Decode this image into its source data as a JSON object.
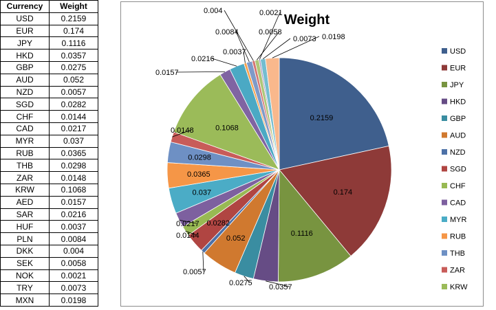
{
  "table": {
    "headers": [
      "Currency",
      "Weight"
    ],
    "rows": [
      [
        "USD",
        "0.2159"
      ],
      [
        "EUR",
        "0.174"
      ],
      [
        "JPY",
        "0.1116"
      ],
      [
        "HKD",
        "0.0357"
      ],
      [
        "GBP",
        "0.0275"
      ],
      [
        "AUD",
        "0.052"
      ],
      [
        "NZD",
        "0.0057"
      ],
      [
        "SGD",
        "0.0282"
      ],
      [
        "CHF",
        "0.0144"
      ],
      [
        "CAD",
        "0.0217"
      ],
      [
        "MYR",
        "0.037"
      ],
      [
        "RUB",
        "0.0365"
      ],
      [
        "THB",
        "0.0298"
      ],
      [
        "ZAR",
        "0.0148"
      ],
      [
        "KRW",
        "0.1068"
      ],
      [
        "AED",
        "0.0157"
      ],
      [
        "SAR",
        "0.0216"
      ],
      [
        "HUF",
        "0.0037"
      ],
      [
        "PLN",
        "0.0084"
      ],
      [
        "DKK",
        "0.004"
      ],
      [
        "SEK",
        "0.0058"
      ],
      [
        "NOK",
        "0.0021"
      ],
      [
        "TRY",
        "0.0073"
      ],
      [
        "MXN",
        "0.0198"
      ]
    ]
  },
  "chart_data": {
    "type": "pie",
    "title": "Weight",
    "legend_position": "right",
    "labels": [
      "USD",
      "EUR",
      "JPY",
      "HKD",
      "GBP",
      "AUD",
      "NZD",
      "SGD",
      "CHF",
      "CAD",
      "MYR",
      "RUB",
      "THB",
      "ZAR",
      "KRW",
      "AED",
      "SAR",
      "HUF",
      "PLN",
      "DKK",
      "SEK",
      "NOK",
      "TRY",
      "MXN"
    ],
    "values": [
      0.2159,
      0.174,
      0.1116,
      0.0357,
      0.0275,
      0.052,
      0.0057,
      0.0282,
      0.0144,
      0.0217,
      0.037,
      0.0365,
      0.0298,
      0.0148,
      0.1068,
      0.0157,
      0.0216,
      0.0037,
      0.0084,
      0.004,
      0.0058,
      0.0021,
      0.0073,
      0.0198
    ],
    "data_labels": [
      "0.2159",
      "0.174",
      "0.1116",
      "0.0357",
      "0.0275",
      "0.052",
      "0.0057",
      "0.0282",
      "0.0144",
      "0.0217",
      "0.037",
      "0.0365",
      "0.0298",
      "0.0148",
      "0.1068",
      "0.0157",
      "0.0216",
      "0.0037",
      "0.0084",
      "0.004",
      "0.0058",
      "0.0021",
      "0.0073",
      "0.0198"
    ],
    "colors": [
      "#3F5F8D",
      "#8E3A38",
      "#789440",
      "#664C85",
      "#3A8DA1",
      "#D0792F",
      "#4D71A7",
      "#B04542",
      "#98B953",
      "#7D609F",
      "#4BACC6",
      "#F59647",
      "#6E90C4",
      "#C85C59",
      "#9BBB59",
      "#8064A2",
      "#4BA9C4",
      "#F8A24C",
      "#7F9AC8",
      "#D47572",
      "#ADC778",
      "#9C88B6",
      "#74BDD0",
      "#F9B88C"
    ],
    "legend_entries": [
      "USD",
      "EUR",
      "JPY",
      "HKD",
      "GBP",
      "AUD",
      "NZD",
      "SGD",
      "CHF",
      "CAD",
      "MYR",
      "RUB",
      "THB",
      "ZAR",
      "KRW"
    ]
  }
}
